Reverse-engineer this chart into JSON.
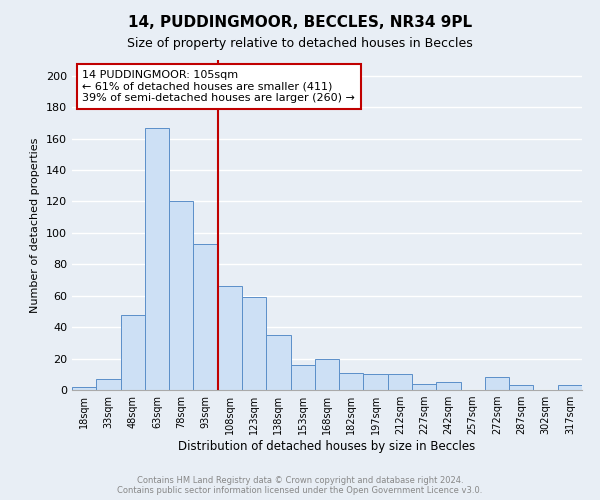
{
  "title1": "14, PUDDINGMOOR, BECCLES, NR34 9PL",
  "title2": "Size of property relative to detached houses in Beccles",
  "xlabel": "Distribution of detached houses by size in Beccles",
  "ylabel": "Number of detached properties",
  "bar_labels": [
    "18sqm",
    "33sqm",
    "48sqm",
    "63sqm",
    "78sqm",
    "93sqm",
    "108sqm",
    "123sqm",
    "138sqm",
    "153sqm",
    "168sqm",
    "182sqm",
    "197sqm",
    "212sqm",
    "227sqm",
    "242sqm",
    "257sqm",
    "272sqm",
    "287sqm",
    "302sqm",
    "317sqm"
  ],
  "bar_values": [
    2,
    7,
    48,
    167,
    120,
    93,
    66,
    59,
    35,
    16,
    20,
    11,
    10,
    10,
    4,
    5,
    0,
    8,
    3,
    0,
    3
  ],
  "bar_color": "#cde0f5",
  "bar_edge_color": "#5b8fc9",
  "ylim": [
    0,
    210
  ],
  "yticks": [
    0,
    20,
    40,
    60,
    80,
    100,
    120,
    140,
    160,
    180,
    200
  ],
  "vline_color": "#c00000",
  "annotation_title": "14 PUDDINGMOOR: 105sqm",
  "annotation_line1": "← 61% of detached houses are smaller (411)",
  "annotation_line2": "39% of semi-detached houses are larger (260) →",
  "annotation_box_color": "#ffffff",
  "annotation_box_edge": "#c00000",
  "footer1": "Contains HM Land Registry data © Crown copyright and database right 2024.",
  "footer2": "Contains public sector information licensed under the Open Government Licence v3.0.",
  "bg_color": "#e8eef5",
  "plot_bg_color": "#e8eef5",
  "grid_color": "#ffffff",
  "title1_fontsize": 11,
  "title2_fontsize": 9
}
